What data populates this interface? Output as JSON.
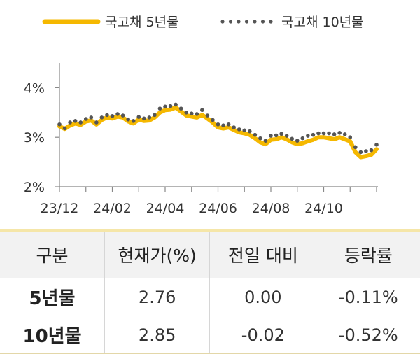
{
  "colors": {
    "five_year": "#F5B800",
    "ten_year": "#555555",
    "axis": "#888888"
  },
  "legend": {
    "five_year_label": "국고채 5년물",
    "ten_year_label": "국고채 10년물"
  },
  "chart_data": {
    "type": "line",
    "y_tick_labels": [
      "4%",
      "3%",
      "2%"
    ],
    "y_ticks": [
      4,
      3,
      2
    ],
    "ylim": [
      2,
      4.5
    ],
    "x_tick_labels": [
      "23/12",
      "24/02",
      "24/04",
      "24/06",
      "24/08",
      "24/10"
    ],
    "x_tick_positions": [
      0,
      2,
      4,
      6,
      8,
      10
    ],
    "xlim": [
      0,
      12
    ],
    "grid": false,
    "legend_position": "top",
    "series": [
      {
        "name": "국고채 5년물",
        "style": "line",
        "x": [
          0.0,
          0.2,
          0.4,
          0.6,
          0.8,
          1.0,
          1.2,
          1.4,
          1.6,
          1.8,
          2.0,
          2.2,
          2.4,
          2.6,
          2.8,
          3.0,
          3.2,
          3.4,
          3.6,
          3.8,
          4.0,
          4.2,
          4.4,
          4.6,
          4.8,
          5.0,
          5.2,
          5.4,
          5.6,
          5.8,
          6.0,
          6.2,
          6.4,
          6.6,
          6.8,
          7.0,
          7.2,
          7.4,
          7.6,
          7.8,
          8.0,
          8.2,
          8.4,
          8.6,
          8.8,
          9.0,
          9.2,
          9.4,
          9.6,
          9.8,
          10.0,
          10.2,
          10.4,
          10.6,
          10.8,
          11.0,
          11.2,
          11.4,
          11.6,
          11.8,
          12.0
        ],
        "values": [
          3.22,
          3.17,
          3.24,
          3.28,
          3.25,
          3.32,
          3.34,
          3.26,
          3.35,
          3.4,
          3.38,
          3.42,
          3.4,
          3.32,
          3.28,
          3.36,
          3.33,
          3.34,
          3.4,
          3.5,
          3.55,
          3.56,
          3.6,
          3.52,
          3.44,
          3.42,
          3.4,
          3.45,
          3.38,
          3.3,
          3.2,
          3.18,
          3.2,
          3.15,
          3.1,
          3.08,
          3.05,
          2.98,
          2.9,
          2.86,
          2.95,
          2.96,
          3.0,
          2.96,
          2.9,
          2.86,
          2.88,
          2.92,
          2.95,
          3.0,
          3.0,
          2.98,
          2.96,
          3.0,
          2.96,
          2.92,
          2.7,
          2.6,
          2.62,
          2.65,
          2.76
        ]
      },
      {
        "name": "국고채 10년물",
        "style": "dotted",
        "x": [
          0.0,
          0.2,
          0.4,
          0.6,
          0.8,
          1.0,
          1.2,
          1.4,
          1.6,
          1.8,
          2.0,
          2.2,
          2.4,
          2.6,
          2.8,
          3.0,
          3.2,
          3.4,
          3.6,
          3.8,
          4.0,
          4.2,
          4.4,
          4.6,
          4.8,
          5.0,
          5.2,
          5.4,
          5.6,
          5.8,
          6.0,
          6.2,
          6.4,
          6.6,
          6.8,
          7.0,
          7.2,
          7.4,
          7.6,
          7.8,
          8.0,
          8.2,
          8.4,
          8.6,
          8.8,
          9.0,
          9.2,
          9.4,
          9.6,
          9.8,
          10.0,
          10.2,
          10.4,
          10.6,
          10.8,
          11.0,
          11.2,
          11.4,
          11.6,
          11.8,
          12.0
        ],
        "values": [
          3.26,
          3.18,
          3.3,
          3.33,
          3.3,
          3.37,
          3.4,
          3.3,
          3.4,
          3.45,
          3.43,
          3.47,
          3.44,
          3.36,
          3.33,
          3.41,
          3.38,
          3.4,
          3.45,
          3.58,
          3.62,
          3.63,
          3.66,
          3.58,
          3.5,
          3.48,
          3.47,
          3.55,
          3.44,
          3.35,
          3.26,
          3.24,
          3.26,
          3.2,
          3.16,
          3.14,
          3.12,
          3.05,
          2.98,
          2.93,
          3.03,
          3.04,
          3.07,
          3.03,
          2.97,
          2.93,
          2.98,
          3.03,
          3.05,
          3.08,
          3.08,
          3.08,
          3.06,
          3.09,
          3.06,
          3.0,
          2.8,
          2.7,
          2.72,
          2.74,
          2.85
        ]
      }
    ]
  },
  "table": {
    "headers": [
      "구분",
      "현재가(%)",
      "전일 대비",
      "등락률"
    ],
    "rows": [
      {
        "label": "5년물",
        "current": "2.76",
        "change": "0.00",
        "rate": "-0.11%"
      },
      {
        "label": "10년물",
        "current": "2.85",
        "change": "-0.02",
        "rate": "-0.52%"
      }
    ]
  }
}
